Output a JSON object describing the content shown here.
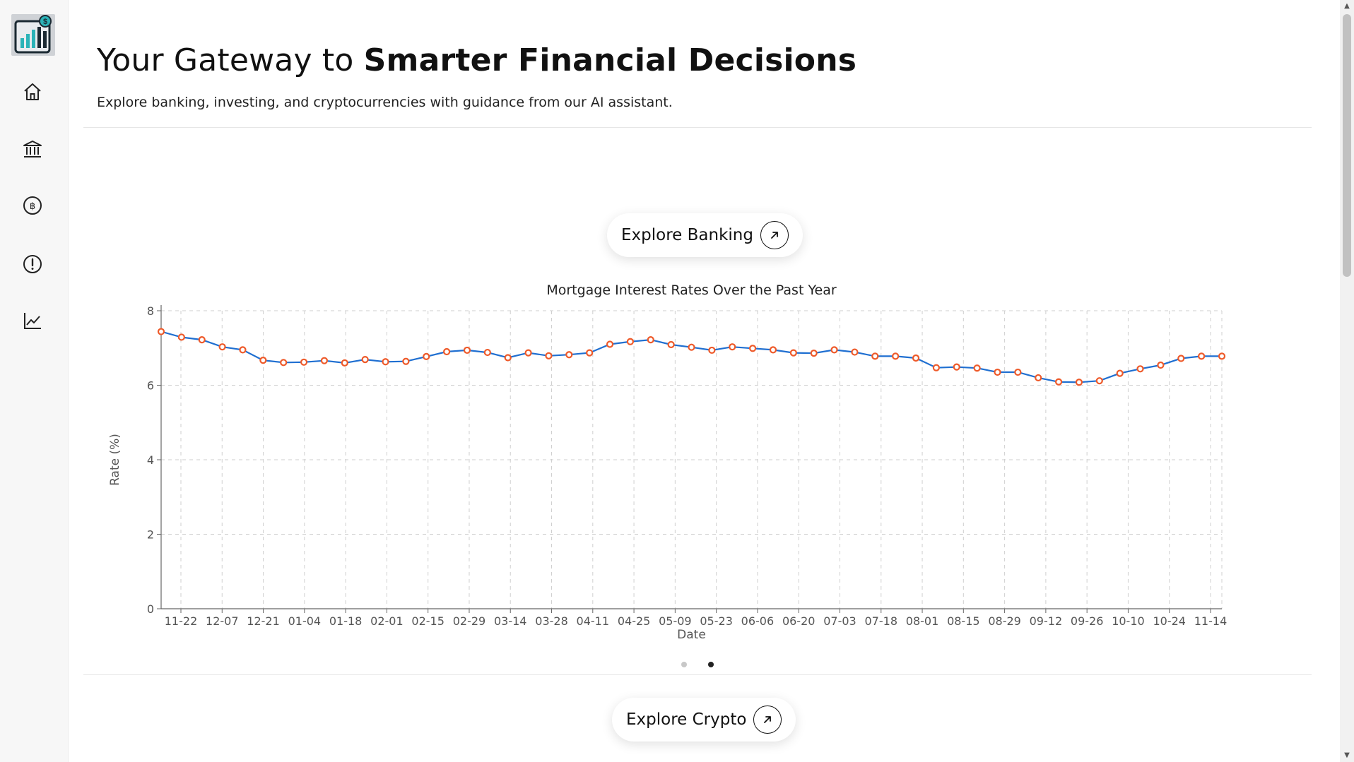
{
  "sidebar": {
    "items": [
      {
        "name": "home",
        "icon": "home-icon"
      },
      {
        "name": "banking",
        "icon": "bank-icon"
      },
      {
        "name": "crypto",
        "icon": "bitcoin-icon"
      },
      {
        "name": "alerts",
        "icon": "alert-circle-icon"
      },
      {
        "name": "charts",
        "icon": "line-chart-icon"
      }
    ]
  },
  "hero": {
    "title_prefix": "Your Gateway to ",
    "title_strong": "Smarter Financial Decisions",
    "subtitle": "Explore banking, investing, and cryptocurrencies with guidance from our AI assistant."
  },
  "banking_button": {
    "label": "Explore Banking"
  },
  "crypto_button": {
    "label": "Explore Crypto"
  },
  "carousel": {
    "total": 2,
    "active": 2
  },
  "colors": {
    "line": "#1f6fd1",
    "marker": "#ee5a2a",
    "text": "#111111"
  },
  "chart_data": {
    "type": "line",
    "title": "Mortgage Interest Rates Over the Past Year",
    "xlabel": "Date",
    "ylabel": "Rate (%)",
    "ylim": [
      0,
      8
    ],
    "yticks": [
      0,
      2,
      4,
      6,
      8
    ],
    "xtick_labels": [
      "11-22",
      "12-07",
      "12-21",
      "01-04",
      "01-18",
      "02-01",
      "02-15",
      "02-29",
      "03-14",
      "03-28",
      "04-11",
      "04-25",
      "05-09",
      "05-23",
      "06-06",
      "06-20",
      "07-03",
      "07-18",
      "08-01",
      "08-15",
      "08-29",
      "09-12",
      "09-26",
      "10-10",
      "10-24",
      "11-14"
    ],
    "grid": true,
    "series": [
      {
        "values": [
          7.44,
          7.29,
          7.22,
          7.03,
          6.95,
          6.67,
          6.61,
          6.62,
          6.66,
          6.6,
          6.69,
          6.63,
          6.64,
          6.77,
          6.9,
          6.94,
          6.88,
          6.74,
          6.87,
          6.79,
          6.82,
          6.87,
          7.1,
          7.17,
          7.22,
          7.09,
          7.02,
          6.94,
          7.03,
          6.99,
          6.95,
          6.87,
          6.86,
          6.95,
          6.89,
          6.78,
          6.78,
          6.73,
          6.47,
          6.49,
          6.46,
          6.35,
          6.35,
          6.2,
          6.09,
          6.08,
          6.12,
          6.32,
          6.44,
          6.54,
          6.72,
          6.78,
          6.78
        ]
      }
    ]
  }
}
